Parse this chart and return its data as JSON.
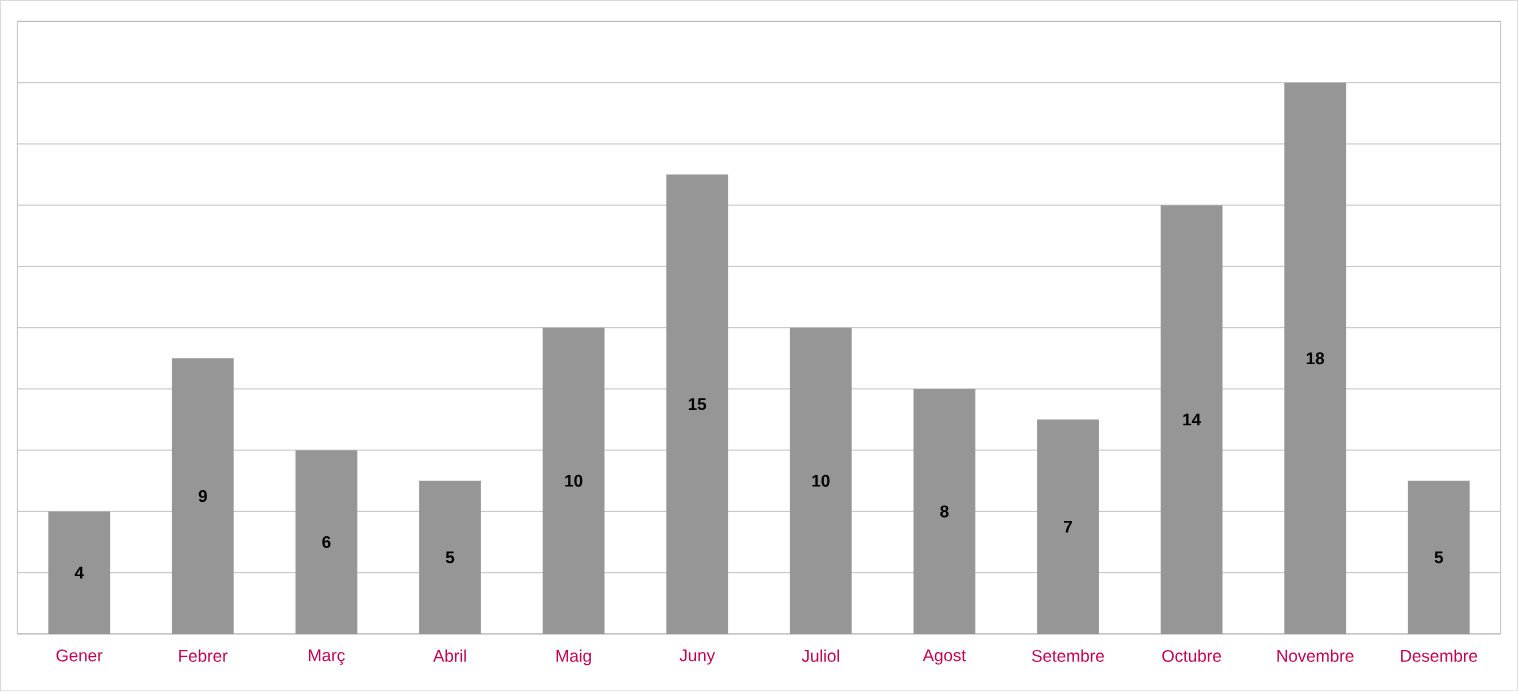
{
  "chart_data": {
    "type": "bar",
    "categories": [
      "Gener",
      "Febrer",
      "Març",
      "Abril",
      "Maig",
      "Juny",
      "Juliol",
      "Agost",
      "Setembre",
      "Octubre",
      "Novembre",
      "Desembre"
    ],
    "values": [
      4,
      9,
      6,
      5,
      10,
      15,
      10,
      8,
      7,
      14,
      18,
      5
    ],
    "color": "#969696",
    "ylim": [
      0,
      20
    ],
    "yticks": [
      0,
      2,
      4,
      6,
      8,
      10,
      12,
      14,
      16,
      18,
      20
    ],
    "grid": "y",
    "tick_labels": "x",
    "data_labels": true
  }
}
